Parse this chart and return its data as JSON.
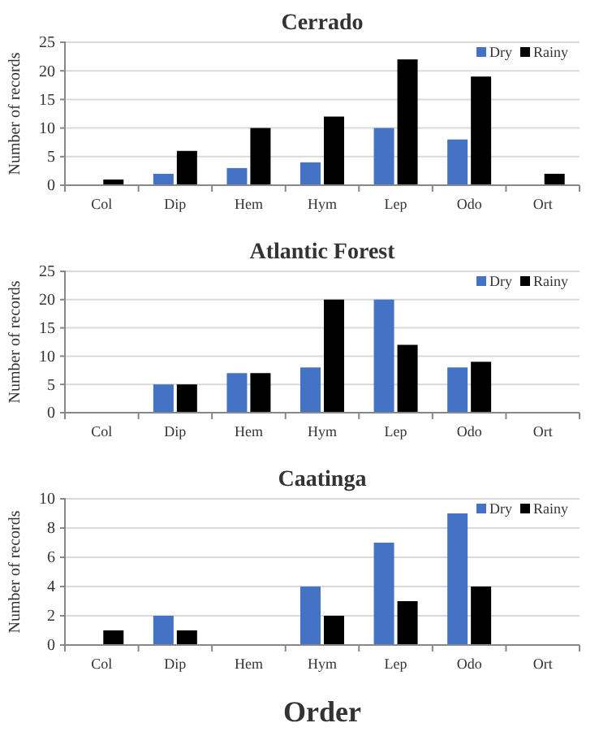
{
  "chart_data": [
    {
      "type": "bar",
      "title": "Cerrado",
      "ylabel": "Number of records",
      "categories": [
        "Col",
        "Dip",
        "Hem",
        "Hym",
        "Lep",
        "Odo",
        "Ort"
      ],
      "series": [
        {
          "name": "Dry",
          "color": "#4472c4",
          "values": [
            0,
            2,
            3,
            4,
            10,
            8,
            0
          ]
        },
        {
          "name": "Rainy",
          "color": "#000000",
          "values": [
            1,
            6,
            10,
            12,
            22,
            19,
            2
          ]
        }
      ],
      "ylim": [
        0,
        25
      ],
      "yticks": [
        0,
        5,
        10,
        15,
        20,
        25
      ],
      "grid": "y",
      "legend": "top right"
    },
    {
      "type": "bar",
      "title": "Atlantic Forest",
      "ylabel": "Number of records",
      "categories": [
        "Col",
        "Dip",
        "Hem",
        "Hym",
        "Lep",
        "Odo",
        "Ort"
      ],
      "series": [
        {
          "name": "Dry",
          "color": "#4472c4",
          "values": [
            0,
            5,
            7,
            8,
            20,
            8,
            0
          ]
        },
        {
          "name": "Rainy",
          "color": "#000000",
          "values": [
            0,
            5,
            7,
            20,
            12,
            9,
            0
          ]
        }
      ],
      "ylim": [
        0,
        25
      ],
      "yticks": [
        0,
        5,
        10,
        15,
        20,
        25
      ],
      "grid": "y",
      "legend": "top right"
    },
    {
      "type": "bar",
      "title": "Caatinga",
      "ylabel": "Number of records",
      "xlabel": "Order",
      "categories": [
        "Col",
        "Dip",
        "Hem",
        "Hym",
        "Lep",
        "Odo",
        "Ort"
      ],
      "series": [
        {
          "name": "Dry",
          "color": "#4472c4",
          "values": [
            0,
            2,
            0,
            4,
            7,
            9,
            0
          ]
        },
        {
          "name": "Rainy",
          "color": "#000000",
          "values": [
            1,
            1,
            0,
            2,
            3,
            4,
            0
          ]
        }
      ],
      "ylim": [
        0,
        10
      ],
      "yticks": [
        0,
        2,
        4,
        6,
        8,
        10
      ],
      "grid": "y",
      "legend": "top right"
    }
  ]
}
